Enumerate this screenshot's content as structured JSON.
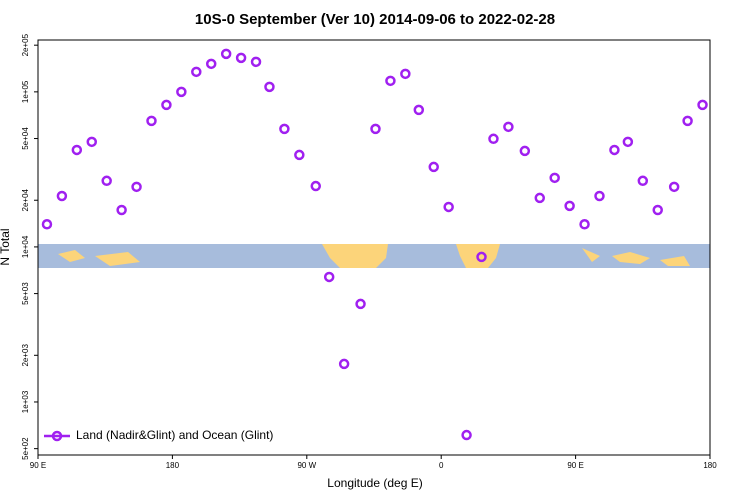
{
  "chart_data": {
    "type": "scatter",
    "title": "10S-0 September (Ver 10)   2014-09-06 to 2022-02-28",
    "x_label": "Longitude (deg E)",
    "y_label": "N Total",
    "log_y": true,
    "legend": "lower left",
    "xlim": [
      90,
      540
    ],
    "xticks": [
      {
        "value": 90,
        "label": "90 E"
      },
      {
        "value": 180,
        "label": "180"
      },
      {
        "value": 270,
        "label": "90 W"
      },
      {
        "value": 360,
        "label": "0"
      },
      {
        "value": 450,
        "label": "90 E"
      },
      {
        "value": 540,
        "label": "180"
      }
    ],
    "ylim": [
      455,
      216000
    ],
    "yticks": [
      {
        "value": 500,
        "label": "5e+02"
      },
      {
        "value": 1000,
        "label": "1e+03"
      },
      {
        "value": 2000,
        "label": "2e+03"
      },
      {
        "value": 5000,
        "label": "5e+03"
      },
      {
        "value": 10000,
        "label": "1e+04"
      },
      {
        "value": 20000,
        "label": "2e+04"
      },
      {
        "value": 50000,
        "label": "5e+04"
      },
      {
        "value": 100000,
        "label": "1e+05"
      },
      {
        "value": 200000,
        "label": "2e+05"
      }
    ],
    "series": [
      {
        "name": "Land (Nadir&Glint) and Ocean (Glint)",
        "color": "#a020f0",
        "x": [
          96,
          106,
          116,
          126,
          136,
          146,
          156,
          166,
          176,
          186,
          196,
          206,
          216,
          226,
          236,
          245,
          255,
          265,
          276,
          285,
          295,
          306,
          316,
          326,
          336,
          345,
          355,
          365,
          377,
          387,
          395,
          405,
          416,
          426,
          436,
          446,
          456,
          466,
          476,
          485,
          495,
          505,
          516,
          525,
          535
        ],
        "values": [
          14000,
          21300,
          42200,
          47600,
          26700,
          17300,
          24400,
          65000,
          82400,
          100000,
          134600,
          151600,
          175800,
          165700,
          156200,
          107700,
          57700,
          39200,
          24700,
          6400,
          1760,
          4290,
          57700,
          117800,
          130700,
          76500,
          32800,
          18100,
          612,
          8620,
          49800,
          59500,
          41600,
          20700,
          27900,
          18400,
          14000,
          21300,
          42200,
          47600,
          26700,
          17300,
          24400,
          65000,
          82400
        ]
      }
    ]
  }
}
